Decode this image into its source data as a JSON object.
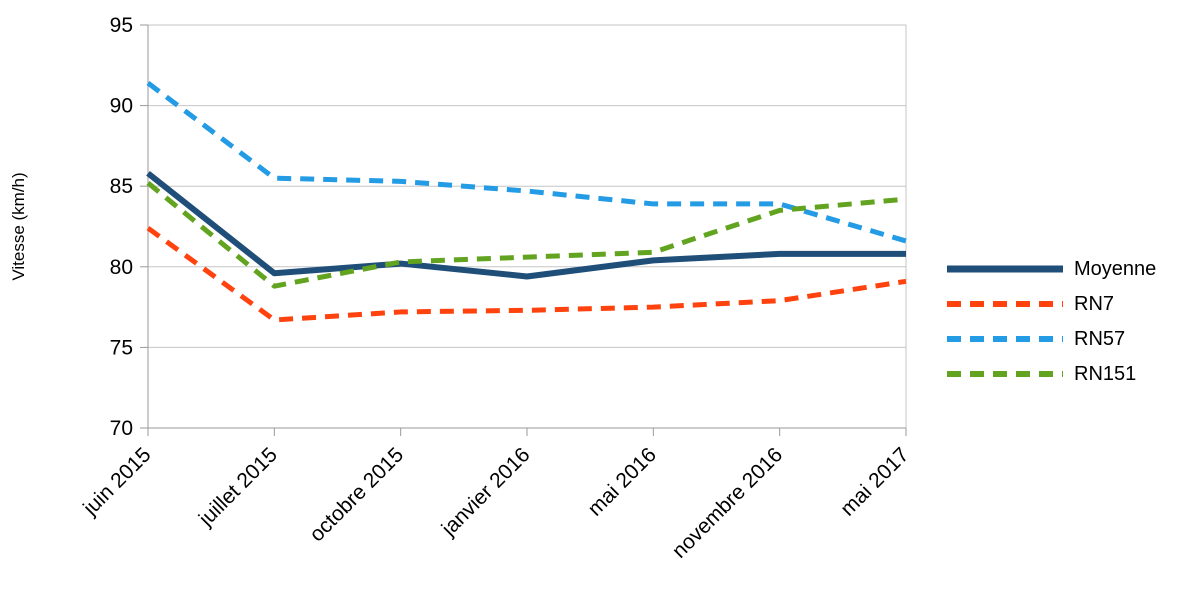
{
  "chart_data": {
    "type": "line",
    "title": "",
    "xlabel": "",
    "ylabel": "Vitesse (km/h)",
    "ylim": [
      70,
      95
    ],
    "yticks": [
      70,
      75,
      80,
      85,
      90,
      95
    ],
    "grid": "horizontal",
    "legend_position": "right",
    "categories": [
      "juin 2015",
      "juillet 2015",
      "octobre 2015",
      "janvier 2016",
      "mai 2016",
      "novembre 2016",
      "mai 2017"
    ],
    "series": [
      {
        "name": "Moyenne",
        "color": "#1f4e79",
        "dashed": false,
        "width": 6,
        "values": [
          85.8,
          79.6,
          80.2,
          79.4,
          80.4,
          80.8,
          80.8
        ]
      },
      {
        "name": "RN7",
        "color": "#ff420e",
        "dashed": true,
        "width": 5,
        "values": [
          82.4,
          76.7,
          77.2,
          77.3,
          77.5,
          77.9,
          79.1
        ]
      },
      {
        "name": "RN57",
        "color": "#249be5",
        "dashed": true,
        "width": 5,
        "values": [
          91.4,
          85.5,
          85.3,
          84.7,
          83.9,
          83.9,
          81.6
        ]
      },
      {
        "name": "RN151",
        "color": "#62a420",
        "dashed": true,
        "width": 5,
        "values": [
          85.2,
          78.8,
          80.3,
          80.6,
          80.9,
          83.5,
          84.2
        ]
      }
    ],
    "axis_color": "#9a9a9a",
    "grid_color": "#c6c6c6",
    "text_color": "#000000"
  }
}
